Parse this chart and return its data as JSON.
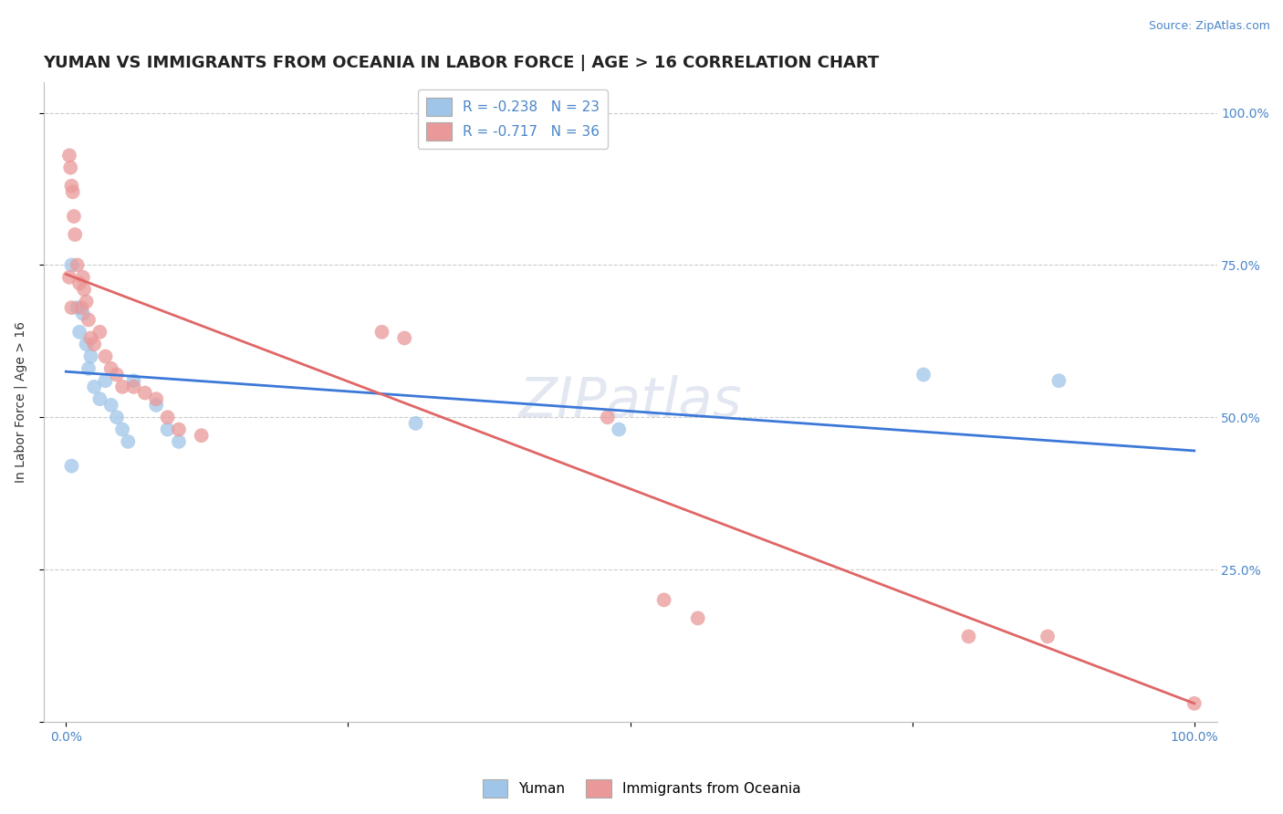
{
  "title": "YUMAN VS IMMIGRANTS FROM OCEANIA IN LABOR FORCE | AGE > 16 CORRELATION CHART",
  "source_text": "Source: ZipAtlas.com",
  "ylabel": "In Labor Force | Age > 16",
  "legend_label1": "R = -0.238   N = 23",
  "legend_label2": "R = -0.717   N = 36",
  "legend_foot1": "Yuman",
  "legend_foot2": "Immigrants from Oceania",
  "blue_color": "#9fc5e8",
  "pink_color": "#ea9999",
  "blue_line_color": "#3c78d8",
  "pink_line_color": "#e06666",
  "watermark": "ZIPatlas",
  "blue_scatter": [
    [
      0.005,
      0.75
    ],
    [
      0.01,
      0.68
    ],
    [
      0.012,
      0.64
    ],
    [
      0.015,
      0.67
    ],
    [
      0.018,
      0.62
    ],
    [
      0.02,
      0.58
    ],
    [
      0.022,
      0.6
    ],
    [
      0.025,
      0.55
    ],
    [
      0.03,
      0.53
    ],
    [
      0.035,
      0.56
    ],
    [
      0.04,
      0.52
    ],
    [
      0.045,
      0.5
    ],
    [
      0.05,
      0.48
    ],
    [
      0.055,
      0.46
    ],
    [
      0.06,
      0.56
    ],
    [
      0.08,
      0.52
    ],
    [
      0.09,
      0.48
    ],
    [
      0.1,
      0.46
    ],
    [
      0.005,
      0.42
    ],
    [
      0.31,
      0.49
    ],
    [
      0.49,
      0.48
    ],
    [
      0.76,
      0.57
    ],
    [
      0.88,
      0.56
    ]
  ],
  "pink_scatter": [
    [
      0.003,
      0.93
    ],
    [
      0.004,
      0.91
    ],
    [
      0.005,
      0.88
    ],
    [
      0.006,
      0.87
    ],
    [
      0.007,
      0.83
    ],
    [
      0.008,
      0.8
    ],
    [
      0.003,
      0.73
    ],
    [
      0.01,
      0.75
    ],
    [
      0.012,
      0.72
    ],
    [
      0.014,
      0.68
    ],
    [
      0.015,
      0.73
    ],
    [
      0.016,
      0.71
    ],
    [
      0.018,
      0.69
    ],
    [
      0.005,
      0.68
    ],
    [
      0.02,
      0.66
    ],
    [
      0.022,
      0.63
    ],
    [
      0.025,
      0.62
    ],
    [
      0.03,
      0.64
    ],
    [
      0.035,
      0.6
    ],
    [
      0.04,
      0.58
    ],
    [
      0.045,
      0.57
    ],
    [
      0.05,
      0.55
    ],
    [
      0.06,
      0.55
    ],
    [
      0.07,
      0.54
    ],
    [
      0.08,
      0.53
    ],
    [
      0.09,
      0.5
    ],
    [
      0.1,
      0.48
    ],
    [
      0.12,
      0.47
    ],
    [
      0.28,
      0.64
    ],
    [
      0.3,
      0.63
    ],
    [
      0.48,
      0.5
    ],
    [
      0.53,
      0.2
    ],
    [
      0.56,
      0.17
    ],
    [
      0.8,
      0.14
    ],
    [
      0.87,
      0.14
    ],
    [
      1.0,
      0.03
    ]
  ],
  "blue_line": [
    [
      0.0,
      0.575
    ],
    [
      1.0,
      0.445
    ]
  ],
  "pink_line": [
    [
      0.0,
      0.735
    ],
    [
      1.0,
      0.03
    ]
  ],
  "xlim": [
    -0.02,
    1.02
  ],
  "ylim": [
    0.0,
    1.05
  ],
  "yticks": [
    0.0,
    0.25,
    0.5,
    0.75,
    1.0
  ],
  "ytick_labels_right": [
    "",
    "25.0%",
    "50.0%",
    "75.0%",
    "100.0%"
  ],
  "grid_color": "#cccccc",
  "background_color": "#ffffff",
  "title_fontsize": 13,
  "axis_label_fontsize": 10,
  "tick_fontsize": 10,
  "source_fontsize": 9
}
